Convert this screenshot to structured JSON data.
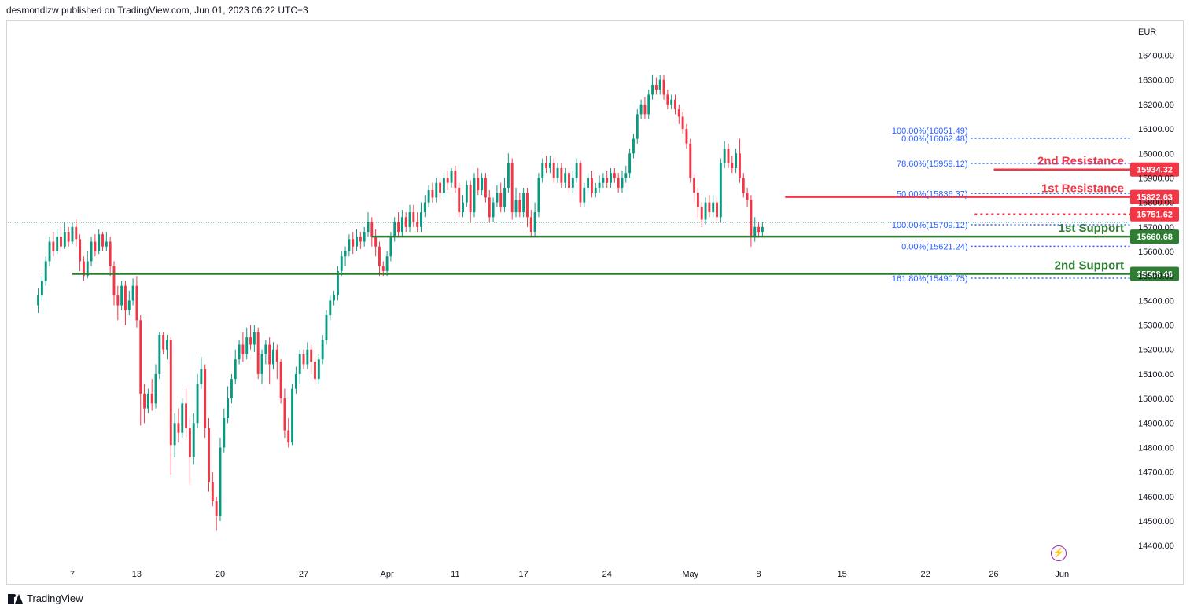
{
  "header": {
    "published": "desmondlzw published on TradingView.com, Jun 01, 2023 06:22 UTC+3"
  },
  "footer": {
    "brand": "TradingView"
  },
  "icons": {
    "logo": "tradingview-logo-icon",
    "replay": "lightning-icon"
  },
  "colors": {
    "up": "#089981",
    "down": "#f23645",
    "resistance": "#f23645",
    "support": "#2e7d32",
    "fib": "#2962ff",
    "fib_text": "#2962ff",
    "axis_text": "#131722"
  },
  "chart_data": {
    "type": "candlestick",
    "currency": "EUR",
    "ylim": [
      14330,
      16530
    ],
    "y_ticks": [
      "16400.00",
      "16300.00",
      "16200.00",
      "16100.00",
      "16000.00",
      "15900.00",
      "15800.00",
      "15700.00",
      "15600.00",
      "15500.00",
      "15400.00",
      "15300.00",
      "15200.00",
      "15100.00",
      "15000.00",
      "14900.00",
      "14800.00",
      "14700.00",
      "14600.00",
      "14500.00",
      "14400.00"
    ],
    "x_ticks": [
      {
        "label": "7",
        "bar": 9
      },
      {
        "label": "13",
        "bar": 26
      },
      {
        "label": "20",
        "bar": 48
      },
      {
        "label": "27",
        "bar": 70
      },
      {
        "label": "Apr",
        "bar": 92
      },
      {
        "label": "11",
        "bar": 110
      },
      {
        "label": "17",
        "bar": 128
      },
      {
        "label": "24",
        "bar": 150
      },
      {
        "label": "May",
        "bar": 172
      },
      {
        "label": "8",
        "bar": 190
      },
      {
        "label": "15",
        "bar": 212
      },
      {
        "label": "22",
        "bar": 234
      },
      {
        "label": "26",
        "bar": 252
      },
      {
        "label": "Jun",
        "bar": 270
      }
    ],
    "bar_range": [
      -8,
      288
    ],
    "candles": [
      [
        15380,
        15420,
        15350,
        15450
      ],
      [
        15420,
        15480,
        15400,
        15500
      ],
      [
        15480,
        15560,
        15460,
        15580
      ],
      [
        15560,
        15640,
        15540,
        15660
      ],
      [
        15640,
        15600,
        15580,
        15680
      ],
      [
        15600,
        15660,
        15590,
        15690
      ],
      [
        15660,
        15620,
        15600,
        15700
      ],
      [
        15620,
        15680,
        15610,
        15720
      ],
      [
        15680,
        15640,
        15620,
        15700
      ],
      [
        15640,
        15700,
        15630,
        15720
      ],
      [
        15700,
        15650,
        15620,
        15730
      ],
      [
        15650,
        15560,
        15520,
        15670
      ],
      [
        15560,
        15500,
        15480,
        15580
      ],
      [
        15500,
        15560,
        15490,
        15600
      ],
      [
        15560,
        15640,
        15540,
        15660
      ],
      [
        15640,
        15600,
        15580,
        15670
      ],
      [
        15600,
        15670,
        15590,
        15690
      ],
      [
        15670,
        15620,
        15600,
        15680
      ],
      [
        15620,
        15640,
        15600,
        15680
      ],
      [
        15640,
        15540,
        15500,
        15660
      ],
      [
        15540,
        15420,
        15380,
        15560
      ],
      [
        15420,
        15380,
        15320,
        15460
      ],
      [
        15380,
        15460,
        15360,
        15480
      ],
      [
        15460,
        15360,
        15300,
        15480
      ],
      [
        15360,
        15400,
        15340,
        15440
      ],
      [
        15400,
        15460,
        15380,
        15490
      ],
      [
        15460,
        15320,
        15290,
        15500
      ],
      [
        15320,
        15020,
        14890,
        15340
      ],
      [
        15020,
        14960,
        14900,
        15060
      ],
      [
        14960,
        15020,
        14940,
        15040
      ],
      [
        15020,
        14980,
        14950,
        15080
      ],
      [
        14980,
        15100,
        14960,
        15140
      ],
      [
        15100,
        15260,
        15080,
        15270
      ],
      [
        15260,
        15200,
        15180,
        15270
      ],
      [
        15200,
        15240,
        15160,
        15260
      ],
      [
        15240,
        14810,
        14690,
        15250
      ],
      [
        14810,
        14900,
        14760,
        14940
      ],
      [
        14900,
        14860,
        14820,
        14960
      ],
      [
        14860,
        14980,
        14840,
        15000
      ],
      [
        14980,
        14880,
        14840,
        15040
      ],
      [
        14880,
        14760,
        14650,
        14920
      ],
      [
        14760,
        14900,
        14730,
        14940
      ],
      [
        14900,
        15060,
        14880,
        15100
      ],
      [
        15060,
        15120,
        15040,
        15170
      ],
      [
        15120,
        14880,
        14840,
        15140
      ],
      [
        14880,
        14660,
        14620,
        14920
      ],
      [
        14660,
        14580,
        14560,
        14700
      ],
      [
        14580,
        14520,
        14460,
        14600
      ],
      [
        14520,
        14800,
        14500,
        14840
      ],
      [
        14800,
        14920,
        14780,
        14960
      ],
      [
        14920,
        15000,
        14900,
        15050
      ],
      [
        15000,
        15080,
        14980,
        15100
      ],
      [
        15080,
        15160,
        15060,
        15200
      ],
      [
        15160,
        15220,
        15140,
        15240
      ],
      [
        15220,
        15180,
        15150,
        15270
      ],
      [
        15180,
        15250,
        15160,
        15290
      ],
      [
        15250,
        15220,
        15200,
        15300
      ],
      [
        15220,
        15270,
        15190,
        15300
      ],
      [
        15270,
        15100,
        15080,
        15290
      ],
      [
        15100,
        15180,
        15060,
        15200
      ],
      [
        15180,
        15220,
        15140,
        15240
      ],
      [
        15220,
        15140,
        15060,
        15250
      ],
      [
        15140,
        15200,
        15120,
        15230
      ],
      [
        15200,
        15150,
        15080,
        15220
      ],
      [
        15150,
        15000,
        14980,
        15160
      ],
      [
        15000,
        14870,
        14840,
        15040
      ],
      [
        14870,
        14820,
        14800,
        14920
      ],
      [
        14820,
        15040,
        14810,
        15060
      ],
      [
        15040,
        15100,
        15020,
        15130
      ],
      [
        15100,
        15180,
        15060,
        15200
      ],
      [
        15180,
        15140,
        15120,
        15200
      ],
      [
        15140,
        15200,
        15120,
        15230
      ],
      [
        15200,
        15150,
        15100,
        15220
      ],
      [
        15150,
        15080,
        15060,
        15170
      ],
      [
        15080,
        15160,
        15060,
        15180
      ],
      [
        15160,
        15240,
        15140,
        15260
      ],
      [
        15240,
        15340,
        15220,
        15360
      ],
      [
        15340,
        15400,
        15320,
        15420
      ],
      [
        15400,
        15420,
        15380,
        15440
      ],
      [
        15420,
        15520,
        15400,
        15540
      ],
      [
        15520,
        15580,
        15500,
        15600
      ],
      [
        15580,
        15600,
        15540,
        15620
      ],
      [
        15600,
        15650,
        15580,
        15670
      ],
      [
        15650,
        15620,
        15590,
        15680
      ],
      [
        15620,
        15660,
        15600,
        15690
      ],
      [
        15660,
        15640,
        15610,
        15680
      ],
      [
        15640,
        15680,
        15620,
        15700
      ],
      [
        15680,
        15720,
        15660,
        15760
      ],
      [
        15720,
        15660,
        15620,
        15740
      ],
      [
        15660,
        15620,
        15580,
        15690
      ],
      [
        15620,
        15540,
        15500,
        15640
      ],
      [
        15540,
        15520,
        15500,
        15560
      ],
      [
        15520,
        15580,
        15500,
        15600
      ],
      [
        15580,
        15660,
        15560,
        15680
      ],
      [
        15660,
        15720,
        15640,
        15740
      ],
      [
        15720,
        15680,
        15660,
        15760
      ],
      [
        15680,
        15740,
        15660,
        15770
      ],
      [
        15740,
        15700,
        15680,
        15760
      ],
      [
        15700,
        15760,
        15680,
        15790
      ],
      [
        15760,
        15720,
        15700,
        15790
      ],
      [
        15720,
        15700,
        15680,
        15760
      ],
      [
        15700,
        15760,
        15680,
        15800
      ],
      [
        15760,
        15800,
        15740,
        15830
      ],
      [
        15800,
        15850,
        15780,
        15870
      ],
      [
        15850,
        15820,
        15800,
        15880
      ],
      [
        15820,
        15880,
        15800,
        15900
      ],
      [
        15880,
        15840,
        15810,
        15900
      ],
      [
        15840,
        15900,
        15820,
        15920
      ],
      [
        15900,
        15880,
        15850,
        15930
      ],
      [
        15880,
        15930,
        15860,
        15940
      ],
      [
        15930,
        15860,
        15840,
        15950
      ],
      [
        15860,
        15760,
        15740,
        15880
      ],
      [
        15760,
        15800,
        15740,
        15830
      ],
      [
        15800,
        15870,
        15780,
        15890
      ],
      [
        15870,
        15760,
        15720,
        15890
      ],
      [
        15760,
        15900,
        15740,
        15920
      ],
      [
        15900,
        15850,
        15830,
        15940
      ],
      [
        15850,
        15900,
        15830,
        15920
      ],
      [
        15900,
        15820,
        15800,
        15920
      ],
      [
        15820,
        15740,
        15720,
        15850
      ],
      [
        15740,
        15800,
        15720,
        15820
      ],
      [
        15800,
        15840,
        15780,
        15870
      ],
      [
        15840,
        15780,
        15760,
        15880
      ],
      [
        15780,
        15860,
        15760,
        15900
      ],
      [
        15860,
        15960,
        15840,
        16000
      ],
      [
        15960,
        15760,
        15730,
        15980
      ],
      [
        15760,
        15810,
        15740,
        15860
      ],
      [
        15810,
        15760,
        15740,
        15840
      ],
      [
        15760,
        15840,
        15740,
        15860
      ],
      [
        15840,
        15740,
        15700,
        15860
      ],
      [
        15740,
        15680,
        15660,
        15770
      ],
      [
        15680,
        15760,
        15660,
        15800
      ],
      [
        15760,
        15900,
        15740,
        15920
      ],
      [
        15900,
        15960,
        15880,
        15980
      ],
      [
        15960,
        15940,
        15920,
        15990
      ],
      [
        15940,
        15960,
        15920,
        15990
      ],
      [
        15960,
        15900,
        15880,
        15980
      ],
      [
        15900,
        15940,
        15880,
        15960
      ],
      [
        15940,
        15880,
        15860,
        15960
      ],
      [
        15880,
        15920,
        15860,
        15940
      ],
      [
        15920,
        15860,
        15840,
        15940
      ],
      [
        15860,
        15900,
        15840,
        15930
      ],
      [
        15900,
        15960,
        15880,
        15980
      ],
      [
        15960,
        15800,
        15780,
        15970
      ],
      [
        15800,
        15860,
        15780,
        15880
      ],
      [
        15860,
        15900,
        15840,
        15920
      ],
      [
        15900,
        15840,
        15820,
        15930
      ],
      [
        15840,
        15860,
        15820,
        15880
      ],
      [
        15860,
        15880,
        15840,
        15910
      ],
      [
        15880,
        15900,
        15860,
        15920
      ],
      [
        15900,
        15880,
        15860,
        15930
      ],
      [
        15880,
        15920,
        15860,
        15940
      ],
      [
        15920,
        15900,
        15880,
        15940
      ],
      [
        15900,
        15860,
        15840,
        15920
      ],
      [
        15860,
        15900,
        15840,
        15930
      ],
      [
        15900,
        15920,
        15880,
        15950
      ],
      [
        15920,
        16000,
        15900,
        16020
      ],
      [
        16000,
        16060,
        15980,
        16080
      ],
      [
        16060,
        16160,
        16040,
        16180
      ],
      [
        16160,
        16200,
        16140,
        16220
      ],
      [
        16200,
        16160,
        16140,
        16230
      ],
      [
        16160,
        16240,
        16140,
        16260
      ],
      [
        16240,
        16280,
        16220,
        16320
      ],
      [
        16280,
        16260,
        16240,
        16310
      ],
      [
        16260,
        16300,
        16240,
        16320
      ],
      [
        16300,
        16240,
        16220,
        16320
      ],
      [
        16240,
        16200,
        16180,
        16260
      ],
      [
        16200,
        16220,
        16180,
        16240
      ],
      [
        16220,
        16180,
        16160,
        16240
      ],
      [
        16180,
        16150,
        16120,
        16200
      ],
      [
        16150,
        16100,
        16080,
        16170
      ],
      [
        16100,
        16040,
        16020,
        16120
      ],
      [
        16040,
        15900,
        15880,
        16060
      ],
      [
        15900,
        15840,
        15800,
        15920
      ],
      [
        15840,
        15780,
        15740,
        15860
      ],
      [
        15780,
        15730,
        15700,
        15800
      ],
      [
        15730,
        15800,
        15710,
        15820
      ],
      [
        15800,
        15760,
        15740,
        15830
      ],
      [
        15760,
        15800,
        15740,
        15830
      ],
      [
        15800,
        15740,
        15720,
        15820
      ],
      [
        15740,
        15960,
        15720,
        15980
      ],
      [
        15960,
        16020,
        15940,
        16050
      ],
      [
        16020,
        15960,
        15940,
        16040
      ],
      [
        15960,
        15940,
        15920,
        15990
      ],
      [
        15940,
        16000,
        15920,
        16020
      ],
      [
        16000,
        15900,
        15880,
        16060
      ],
      [
        15900,
        15840,
        15820,
        15920
      ],
      [
        15840,
        15810,
        15780,
        15860
      ],
      [
        15810,
        15660,
        15620,
        15830
      ],
      [
        15660,
        15700,
        15640,
        15740
      ],
      [
        15700,
        15680,
        15660,
        15720
      ],
      [
        15680,
        15700,
        15660,
        15720
      ]
    ],
    "levels": [
      {
        "label": "2nd Resistance",
        "value": 15934.32,
        "value_label": "15934.32",
        "style": "solid",
        "color": "#f23645",
        "from_bar": 252,
        "text_bar": 258
      },
      {
        "label": "1st Resistance",
        "value": 15822.63,
        "value_label": "15822.63",
        "style": "solid",
        "color": "#f23645",
        "from_bar": 197,
        "text_bar": 258
      },
      {
        "label": "",
        "value": 15751.62,
        "value_label": "15751.62",
        "style": "dotted",
        "color": "#f23645",
        "from_bar": 247,
        "text_bar": 0
      },
      {
        "label": "1st Support",
        "value": 15660.68,
        "value_label": "15660.68",
        "style": "solid",
        "color": "#2e7d32",
        "from_bar": 88,
        "text_bar": 262
      },
      {
        "label": "2nd Support",
        "value": 15508.46,
        "value_label": "15508.46",
        "style": "solid",
        "color": "#2e7d32",
        "from_bar": 9,
        "text_bar": 258
      }
    ],
    "fib_labels": [
      {
        "text": "100.00%(16051.49)",
        "value": 16062,
        "end_label": true
      },
      {
        "text": "0.00%(16062.48)",
        "value": 16062,
        "end_label": true
      },
      {
        "text": "78.60%(15959.12)",
        "value": 15959.12,
        "end_label": false
      },
      {
        "text": "50.00%(15836.37)",
        "value": 15836.37,
        "end_label": false
      },
      {
        "text": "100.00%(15709.12)",
        "value": 15709.12,
        "end_label": false
      },
      {
        "text": "0.00%(15621.24)",
        "value": 15621.24,
        "end_label": false
      },
      {
        "text": "161.80%(15490.75)",
        "value": 15490.75,
        "end_label": false
      }
    ],
    "last_price": 15718
  }
}
